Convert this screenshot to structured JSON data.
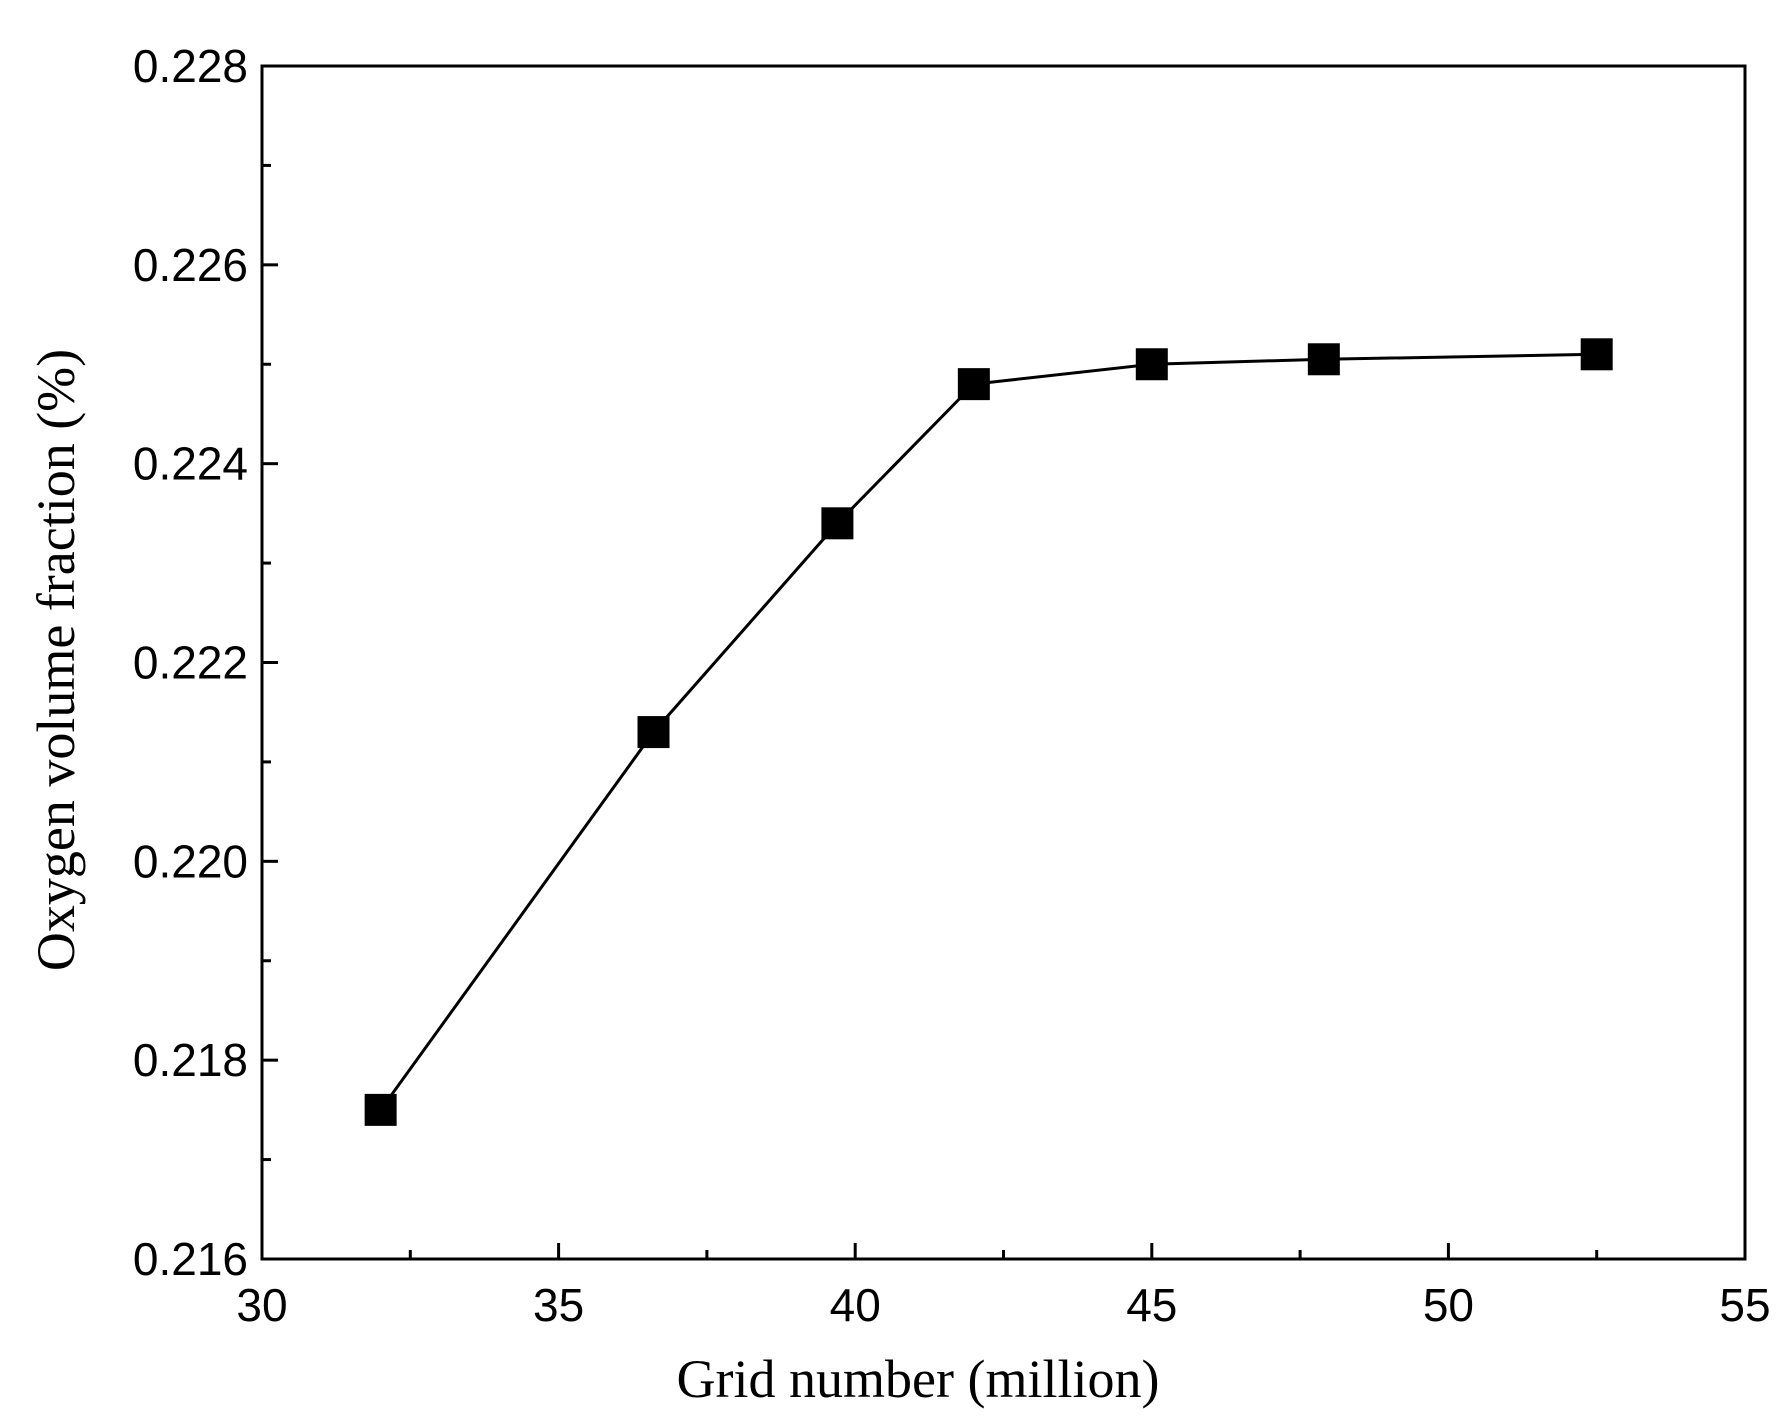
{
  "chart_data": {
    "type": "line",
    "title": "",
    "xlabel": "Grid number (million)",
    "ylabel": "Oxygen volume fraction (%)",
    "xlim": [
      30,
      55
    ],
    "ylim": [
      0.216,
      0.228
    ],
    "x_ticks": [
      30,
      35,
      40,
      45,
      50,
      55
    ],
    "x_tick_labels": [
      "30",
      "35",
      "40",
      "45",
      "50",
      "55"
    ],
    "y_ticks": [
      0.216,
      0.218,
      0.22,
      0.222,
      0.224,
      0.226,
      0.228
    ],
    "y_tick_labels": [
      "0.216",
      "0.218",
      "0.220",
      "0.222",
      "0.224",
      "0.226",
      "0.228"
    ],
    "grid": false,
    "legend": "none",
    "series": [
      {
        "name": "Oxygen volume fraction",
        "marker": "square",
        "color": "#000000",
        "x": [
          32.0,
          36.6,
          39.7,
          42.0,
          45.0,
          47.9,
          52.5
        ],
        "values": [
          0.2175,
          0.2213,
          0.2234,
          0.2248,
          0.225,
          0.22505,
          0.2251
        ]
      }
    ]
  }
}
